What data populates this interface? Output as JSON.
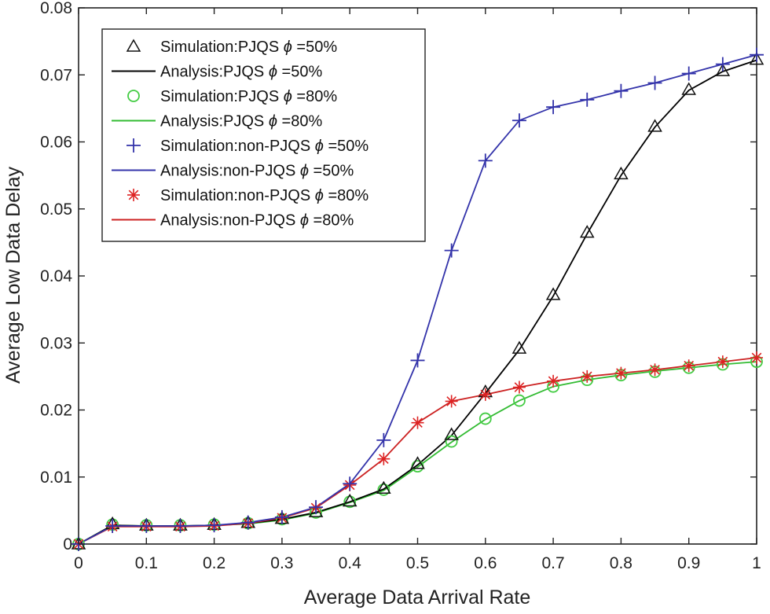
{
  "chart_data": {
    "type": "line",
    "title": "",
    "xlabel": "Average Data Arrival Rate",
    "ylabel": "Average Low Data Delay",
    "xlim": [
      0,
      1
    ],
    "ylim": [
      0,
      0.08
    ],
    "grid": false,
    "legend_position": "top-left",
    "x_ticks": [
      0,
      0.1,
      0.2,
      0.3,
      0.4,
      0.5,
      0.6,
      0.7,
      0.8,
      0.9,
      1
    ],
    "x_tick_labels": [
      "0",
      "0.1",
      "0.2",
      "0.3",
      "0.4",
      "0.5",
      "0.6",
      "0.7",
      "0.8",
      "0.9",
      "1"
    ],
    "y_ticks": [
      0,
      0.01,
      0.02,
      0.03,
      0.04,
      0.05,
      0.06,
      0.07,
      0.08
    ],
    "y_tick_labels": [
      "0",
      "0.01",
      "0.02",
      "0.03",
      "0.04",
      "0.05",
      "0.06",
      "0.07",
      "0.08"
    ],
    "x": [
      0,
      0.05,
      0.1,
      0.15,
      0.2,
      0.25,
      0.3,
      0.35,
      0.4,
      0.45,
      0.5,
      0.55,
      0.6,
      0.65,
      0.7,
      0.75,
      0.8,
      0.85,
      0.9,
      0.95,
      1
    ],
    "series": [
      {
        "name": "PJQS 50%",
        "color": "#000000",
        "marker": "triangle",
        "marker_color": "#111111",
        "sim_label": "Simulation:PJQS",
        "ana_label": "Analysis:PJQS",
        "phi_text": "=50%",
        "analysis": [
          0,
          0.0028,
          0.0027,
          0.0027,
          0.0028,
          0.0031,
          0.0037,
          0.0047,
          0.0063,
          0.0082,
          0.0118,
          0.0162,
          0.0225,
          0.029,
          0.037,
          0.0463,
          0.055,
          0.0622,
          0.0677,
          0.0705,
          0.0722
        ],
        "simulation": [
          0,
          0.003,
          0.0028,
          0.0028,
          0.0029,
          0.0032,
          0.0038,
          0.0048,
          0.0064,
          0.0083,
          0.012,
          0.0163,
          0.0227,
          0.0292,
          0.0372,
          0.0465,
          0.0552,
          0.0623,
          0.0678,
          0.0706,
          0.0723
        ]
      },
      {
        "name": "PJQS 80%",
        "color": "#33bb33",
        "marker": "circle",
        "marker_color": "#44cc44",
        "sim_label": "Simulation:PJQS",
        "ana_label": "Analysis:PJQS",
        "phi_text": "=80%",
        "analysis": [
          0,
          0.0028,
          0.0027,
          0.0027,
          0.0028,
          0.003,
          0.0036,
          0.0046,
          0.0062,
          0.008,
          0.0115,
          0.0152,
          0.0186,
          0.0214,
          0.0235,
          0.0245,
          0.0252,
          0.0258,
          0.0263,
          0.0268,
          0.0272
        ],
        "simulation": [
          0,
          0.0029,
          0.0028,
          0.0028,
          0.0029,
          0.0031,
          0.0037,
          0.0047,
          0.0063,
          0.0081,
          0.0116,
          0.0153,
          0.0187,
          0.0214,
          0.0235,
          0.0245,
          0.0252,
          0.0257,
          0.0263,
          0.0268,
          0.0272
        ]
      },
      {
        "name": "non-PJQS 50%",
        "color": "#3333aa",
        "marker": "plus",
        "marker_color": "#3333aa",
        "sim_label": "Simulation:non-PJQS",
        "ana_label": "Analysis:non-PJQS",
        "phi_text": "=50%",
        "analysis": [
          0,
          0.0027,
          0.0027,
          0.0027,
          0.0028,
          0.0032,
          0.004,
          0.0055,
          0.009,
          0.0155,
          0.0274,
          0.0438,
          0.0572,
          0.0632,
          0.0652,
          0.0663,
          0.0676,
          0.0688,
          0.0702,
          0.0716,
          0.073
        ],
        "simulation": [
          0,
          0.0027,
          0.0027,
          0.0027,
          0.0028,
          0.0032,
          0.004,
          0.0055,
          0.009,
          0.0155,
          0.0274,
          0.0438,
          0.0572,
          0.0632,
          0.0652,
          0.0663,
          0.0676,
          0.0688,
          0.0702,
          0.0716,
          0.073
        ]
      },
      {
        "name": "non-PJQS 80%",
        "color": "#cc2222",
        "marker": "asterisk",
        "marker_color": "#dd2222",
        "sim_label": "Simulation:non-PJQS",
        "ana_label": "Analysis:non-PJQS",
        "phi_text": "=80%",
        "analysis": [
          0,
          0.0026,
          0.0026,
          0.0026,
          0.0027,
          0.0031,
          0.0039,
          0.0054,
          0.0088,
          0.0127,
          0.0181,
          0.0213,
          0.0223,
          0.0234,
          0.0243,
          0.025,
          0.0255,
          0.026,
          0.0266,
          0.0272,
          0.0278
        ],
        "simulation": [
          0,
          0.0026,
          0.0026,
          0.0026,
          0.0027,
          0.0031,
          0.0039,
          0.0054,
          0.0088,
          0.0127,
          0.0181,
          0.0213,
          0.0223,
          0.0234,
          0.0243,
          0.025,
          0.0255,
          0.026,
          0.0266,
          0.0272,
          0.0278
        ]
      }
    ],
    "legend_entries": [
      {
        "kind": "marker",
        "series": 0,
        "label": "Simulation:PJQS",
        "phi": "=50%"
      },
      {
        "kind": "line",
        "series": 0,
        "label": "Analysis:PJQS",
        "phi": "=50%"
      },
      {
        "kind": "marker",
        "series": 1,
        "label": "Simulation:PJQS",
        "phi": "=80%"
      },
      {
        "kind": "line",
        "series": 1,
        "label": "Analysis:PJQS",
        "phi": "=80%"
      },
      {
        "kind": "marker",
        "series": 2,
        "label": "Simulation:non-PJQS",
        "phi": "=50%"
      },
      {
        "kind": "line",
        "series": 2,
        "label": "Analysis:non-PJQS",
        "phi": "=50%"
      },
      {
        "kind": "marker",
        "series": 3,
        "label": "Simulation:non-PJQS",
        "phi": "=80%"
      },
      {
        "kind": "line",
        "series": 3,
        "label": "Analysis:non-PJQS",
        "phi": "=80%"
      }
    ],
    "phi_symbol": "ϕ"
  }
}
